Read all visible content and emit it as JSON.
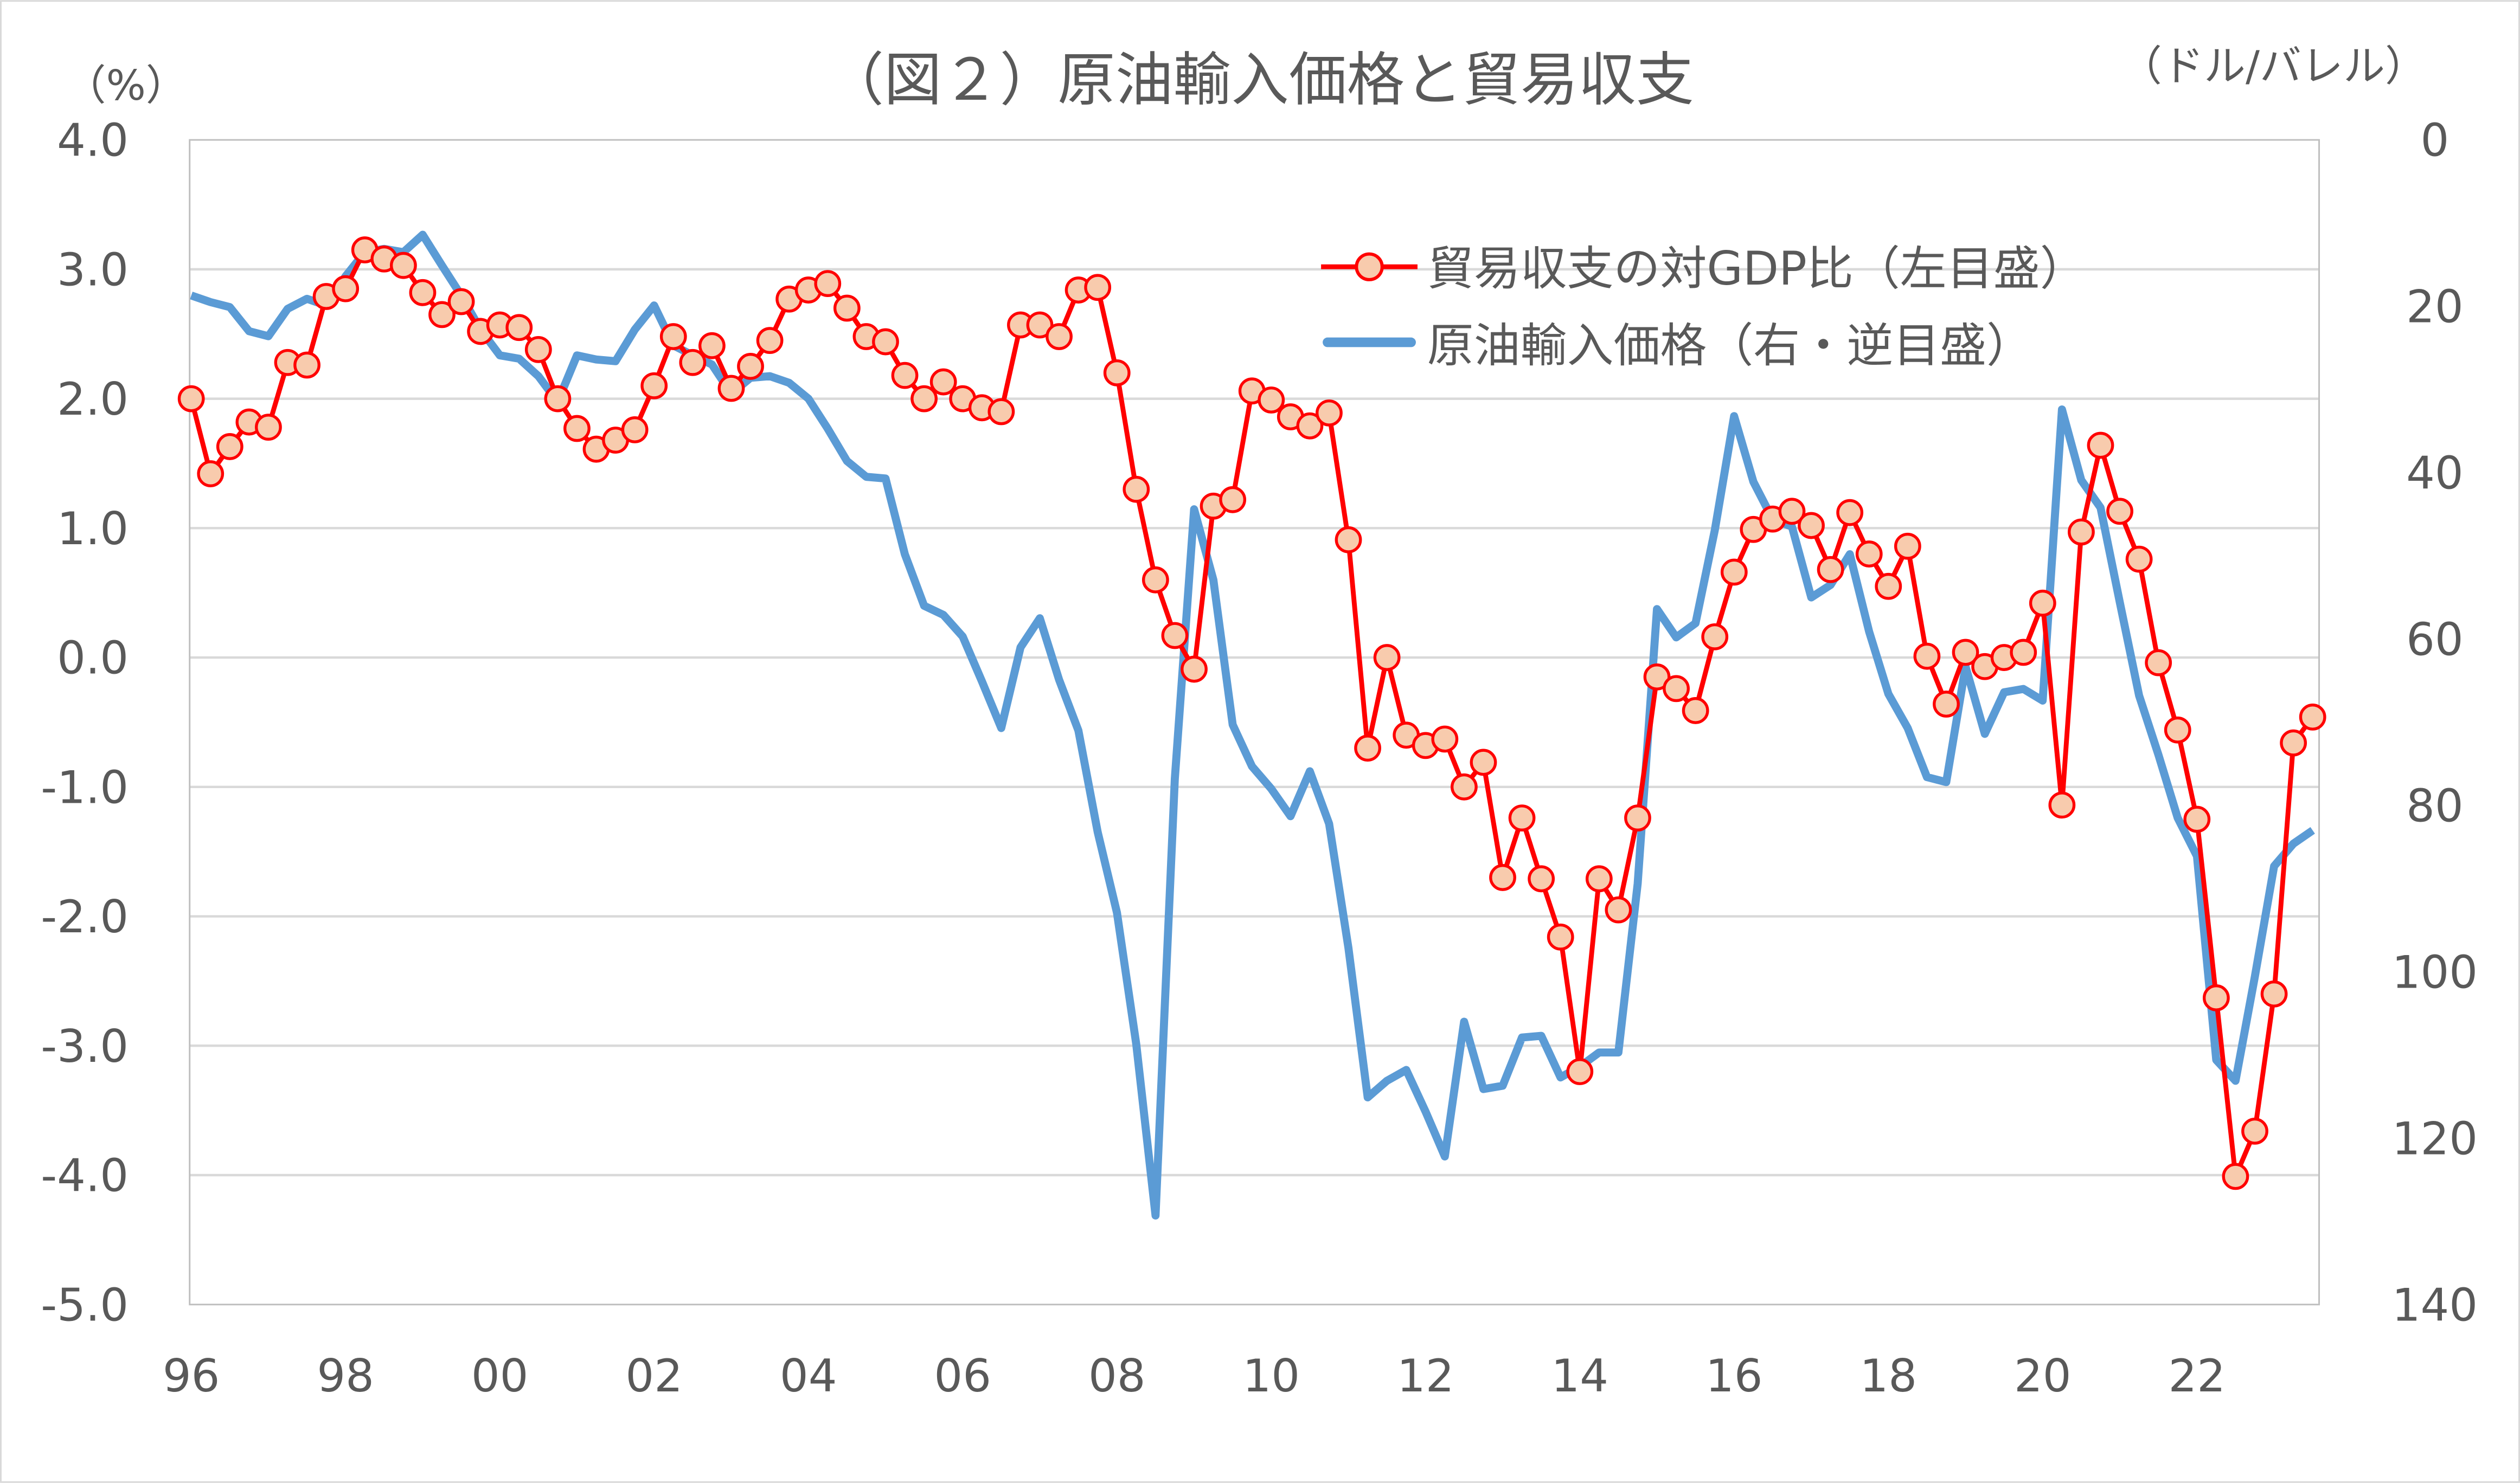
{
  "chart_data": {
    "type": "line",
    "title": "（図２）原油輸入価格と貿易収支",
    "left_unit": "（%）",
    "right_unit": "（ドル/バレル）",
    "left_ylim": [
      -5.0,
      4.0
    ],
    "right_ylim": [
      0,
      140
    ],
    "right_axis_inverted": true,
    "grid": true,
    "legend_position": "top-right",
    "left_ticks": [
      "4.0",
      "3.0",
      "2.0",
      "1.0",
      "0.0",
      "-1.0",
      "-2.0",
      "-3.0",
      "-4.0",
      "-5.0"
    ],
    "right_ticks": [
      "0",
      "20",
      "40",
      "60",
      "80",
      "100",
      "120",
      "140"
    ],
    "x_ticks": [
      "96",
      "98",
      "00",
      "02",
      "04",
      "06",
      "08",
      "10",
      "12",
      "14",
      "16",
      "18",
      "20",
      "22"
    ],
    "x": [
      "1996Q1",
      "1996Q2",
      "1996Q3",
      "1996Q4",
      "1997Q1",
      "1997Q2",
      "1997Q3",
      "1997Q4",
      "1998Q1",
      "1998Q2",
      "1998Q3",
      "1998Q4",
      "1999Q1",
      "1999Q2",
      "1999Q3",
      "1999Q4",
      "2000Q1",
      "2000Q2",
      "2000Q3",
      "2000Q4",
      "2001Q1",
      "2001Q2",
      "2001Q3",
      "2001Q4",
      "2002Q1",
      "2002Q2",
      "2002Q3",
      "2002Q4",
      "2003Q1",
      "2003Q2",
      "2003Q3",
      "2003Q4",
      "2004Q1",
      "2004Q2",
      "2004Q3",
      "2004Q4",
      "2005Q1",
      "2005Q2",
      "2005Q3",
      "2005Q4",
      "2006Q1",
      "2006Q2",
      "2006Q3",
      "2006Q4",
      "2007Q1",
      "2007Q2",
      "2007Q3",
      "2007Q4",
      "2008Q1",
      "2008Q2",
      "2008Q3",
      "2008Q4",
      "2009Q1",
      "2009Q2",
      "2009Q3",
      "2009Q4",
      "2010Q1",
      "2010Q2",
      "2010Q3",
      "2010Q4",
      "2011Q1",
      "2011Q2",
      "2011Q3",
      "2011Q4",
      "2012Q1",
      "2012Q2",
      "2012Q3",
      "2012Q4",
      "2013Q1",
      "2013Q2",
      "2013Q3",
      "2013Q4",
      "2014Q1",
      "2014Q2",
      "2014Q3",
      "2014Q4",
      "2015Q1",
      "2015Q2",
      "2015Q3",
      "2015Q4",
      "2016Q1",
      "2016Q2",
      "2016Q3",
      "2016Q4",
      "2017Q1",
      "2017Q2",
      "2017Q3",
      "2017Q4",
      "2018Q1",
      "2018Q2",
      "2018Q3",
      "2018Q4",
      "2019Q1",
      "2019Q2",
      "2019Q3",
      "2019Q4",
      "2020Q1",
      "2020Q2",
      "2020Q3",
      "2020Q4",
      "2021Q1",
      "2021Q2",
      "2021Q3",
      "2021Q4",
      "2022Q1",
      "2022Q2",
      "2022Q3",
      "2022Q4",
      "2023Q1",
      "2023Q2",
      "2023Q3"
    ],
    "series": [
      {
        "name": "貿易収支の対GDP比（左目盛）",
        "axis": "left",
        "color": "#ff0000",
        "marker_fill": "#f8cbad",
        "values": [
          2.0,
          1.42,
          1.63,
          1.82,
          1.78,
          2.28,
          2.26,
          2.79,
          2.85,
          3.15,
          3.08,
          3.03,
          2.82,
          2.65,
          2.75,
          2.52,
          2.57,
          2.55,
          2.38,
          2.0,
          1.77,
          1.61,
          1.68,
          1.76,
          2.1,
          2.48,
          2.28,
          2.41,
          2.08,
          2.25,
          2.45,
          2.77,
          2.84,
          2.89,
          2.7,
          2.48,
          2.44,
          2.18,
          2.0,
          2.13,
          2.0,
          1.93,
          1.9,
          2.57,
          2.57,
          2.48,
          2.84,
          2.86,
          2.2,
          1.3,
          0.6,
          0.17,
          -0.09,
          1.17,
          1.22,
          2.06,
          1.99,
          1.86,
          1.79,
          1.89,
          0.91,
          -0.7,
          0.0,
          -0.6,
          -0.68,
          -0.63,
          -1.0,
          -0.81,
          -1.7,
          -1.24,
          -1.71,
          -2.16,
          -3.2,
          -1.71,
          -1.95,
          -1.24,
          -0.15,
          -0.24,
          -0.41,
          0.16,
          0.66,
          0.99,
          1.07,
          1.13,
          1.02,
          0.68,
          1.12,
          0.8,
          0.55,
          0.86,
          0.01,
          -0.36,
          0.04,
          -0.07,
          0.0,
          0.04,
          0.42,
          -1.14,
          0.97,
          1.64,
          1.13,
          0.76,
          -0.04,
          -0.56,
          -1.25,
          -2.63,
          -4.01,
          -3.66,
          -2.6,
          -0.66,
          -0.46
        ]
      },
      {
        "name": "原油輸入価格（右・逆目盛）",
        "axis": "right",
        "color": "#5b9bd5",
        "values": [
          18.7,
          19.5,
          20.1,
          23,
          23.6,
          20.3,
          19.1,
          19.9,
          16.4,
          13.5,
          13.1,
          13.5,
          11.4,
          15.1,
          18.7,
          22.8,
          25.9,
          26.3,
          28.4,
          31.5,
          25.9,
          26.4,
          26.6,
          22.8,
          19.9,
          24.7,
          25.9,
          27,
          30.5,
          28.6,
          28.4,
          29.2,
          31.1,
          34.7,
          38.6,
          40.5,
          40.7,
          49.8,
          56,
          57.1,
          59.7,
          65.1,
          70.7,
          61,
          57.5,
          64.9,
          71,
          83.2,
          92.9,
          108.7,
          129.3,
          76.8,
          44.4,
          52.9,
          70.3,
          75.3,
          78,
          81.3,
          75.9,
          82.2,
          97.1,
          115.1,
          113.1,
          111.8,
          116.8,
          122.2,
          106,
          114.1,
          113.7,
          107.9,
          107.7,
          112.7,
          111.4,
          109.7,
          109.7,
          89.4,
          56.4,
          59.8,
          58.1,
          46.9,
          33.2,
          41.1,
          45.6,
          46.5,
          55,
          53.5,
          49.8,
          59.1,
          66.6,
          70.7,
          76.6,
          77.2,
          63.3,
          71.4,
          66.4,
          66,
          67.4,
          32.4,
          40.9,
          44.2,
          55.6,
          66.8,
          73.9,
          81.5,
          86.1,
          110.6,
          113.1,
          100.6,
          87.3,
          84.6,
          83
        ]
      }
    ]
  }
}
